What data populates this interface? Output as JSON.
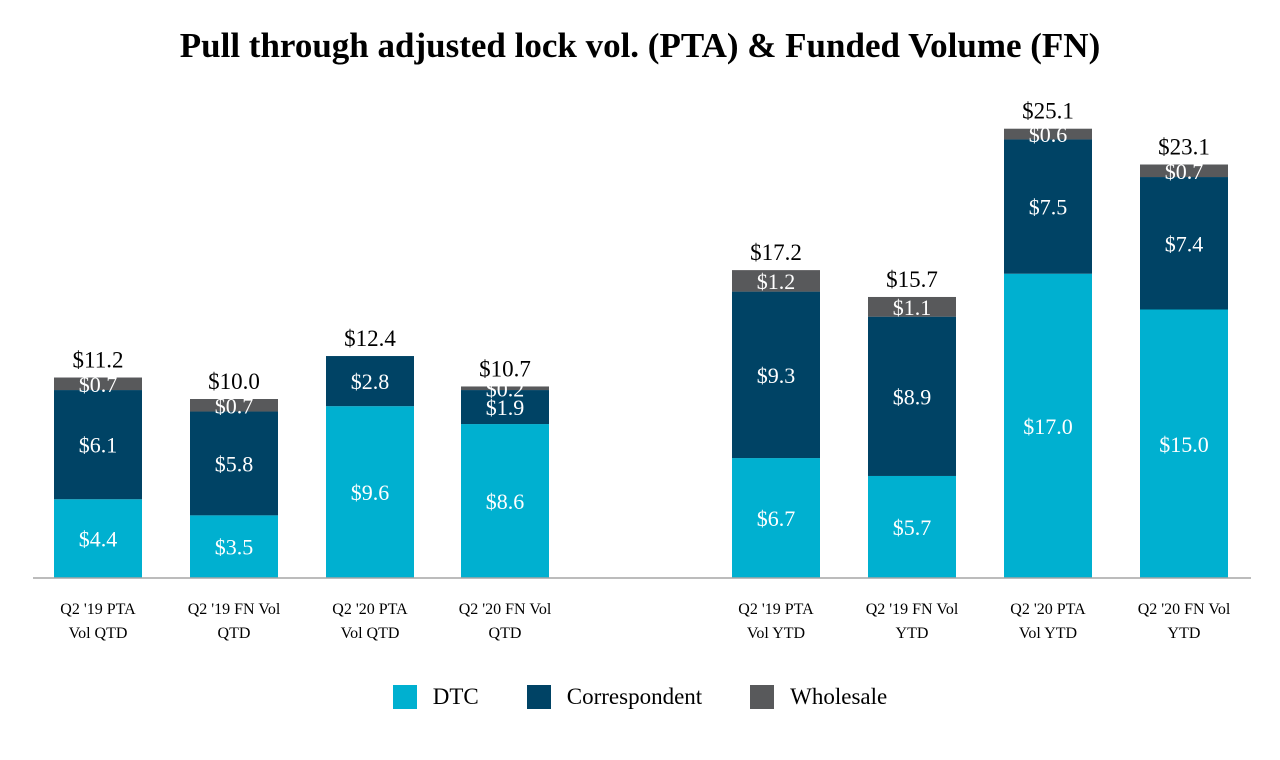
{
  "chart_data": {
    "type": "stacked-bar",
    "title": "Pull through adjusted lock vol. (PTA) & Funded Volume (FN)",
    "xlabel": "",
    "ylabel": "",
    "ylim": [
      0,
      26
    ],
    "grid": false,
    "legend_position": "bottom",
    "categories": [
      [
        "Q2 '19 PTA",
        "Vol QTD"
      ],
      [
        "Q2 '19 FN Vol",
        "QTD"
      ],
      [
        "Q2 '20 PTA",
        "Vol QTD"
      ],
      [
        "Q2 '20 FN Vol",
        "QTD"
      ],
      [
        "Q2 '19 PTA",
        "Vol YTD"
      ],
      [
        "Q2 '19 FN Vol",
        "YTD"
      ],
      [
        "Q2 '20 PTA",
        "Vol YTD"
      ],
      [
        "Q2 '20 FN Vol",
        "YTD"
      ]
    ],
    "series": [
      {
        "name": "DTC",
        "color": "#00B0D0",
        "values": [
          4.4,
          3.5,
          9.6,
          8.6,
          6.7,
          5.7,
          17.0,
          15.0
        ],
        "labels": [
          "$4.4",
          "$3.5",
          "$9.6",
          "$8.6",
          "$6.7",
          "$5.7",
          "$17.0",
          "$15.0"
        ]
      },
      {
        "name": "Correspondent",
        "color": "#004365",
        "values": [
          6.1,
          5.8,
          2.8,
          1.9,
          9.3,
          8.9,
          7.5,
          7.4
        ],
        "labels": [
          "$6.1",
          "$5.8",
          "$2.8",
          "$1.9",
          "$9.3",
          "$8.9",
          "$7.5",
          "$7.4"
        ]
      },
      {
        "name": "Wholesale",
        "color": "#58595B",
        "values": [
          0.7,
          0.7,
          0,
          0.2,
          1.2,
          1.1,
          0.6,
          0.7
        ],
        "labels": [
          "$0.7",
          "$0.7",
          "",
          "$0.2",
          "$1.2",
          "$1.1",
          "$0.6",
          "$0.7"
        ]
      }
    ],
    "totals": [
      11.2,
      10.0,
      12.4,
      10.7,
      17.2,
      15.7,
      25.1,
      23.1
    ],
    "total_labels": [
      "$11.2",
      "$10.0",
      "$12.4",
      "$10.7",
      "$17.2",
      "$15.7",
      "$25.1",
      "$23.1"
    ]
  }
}
